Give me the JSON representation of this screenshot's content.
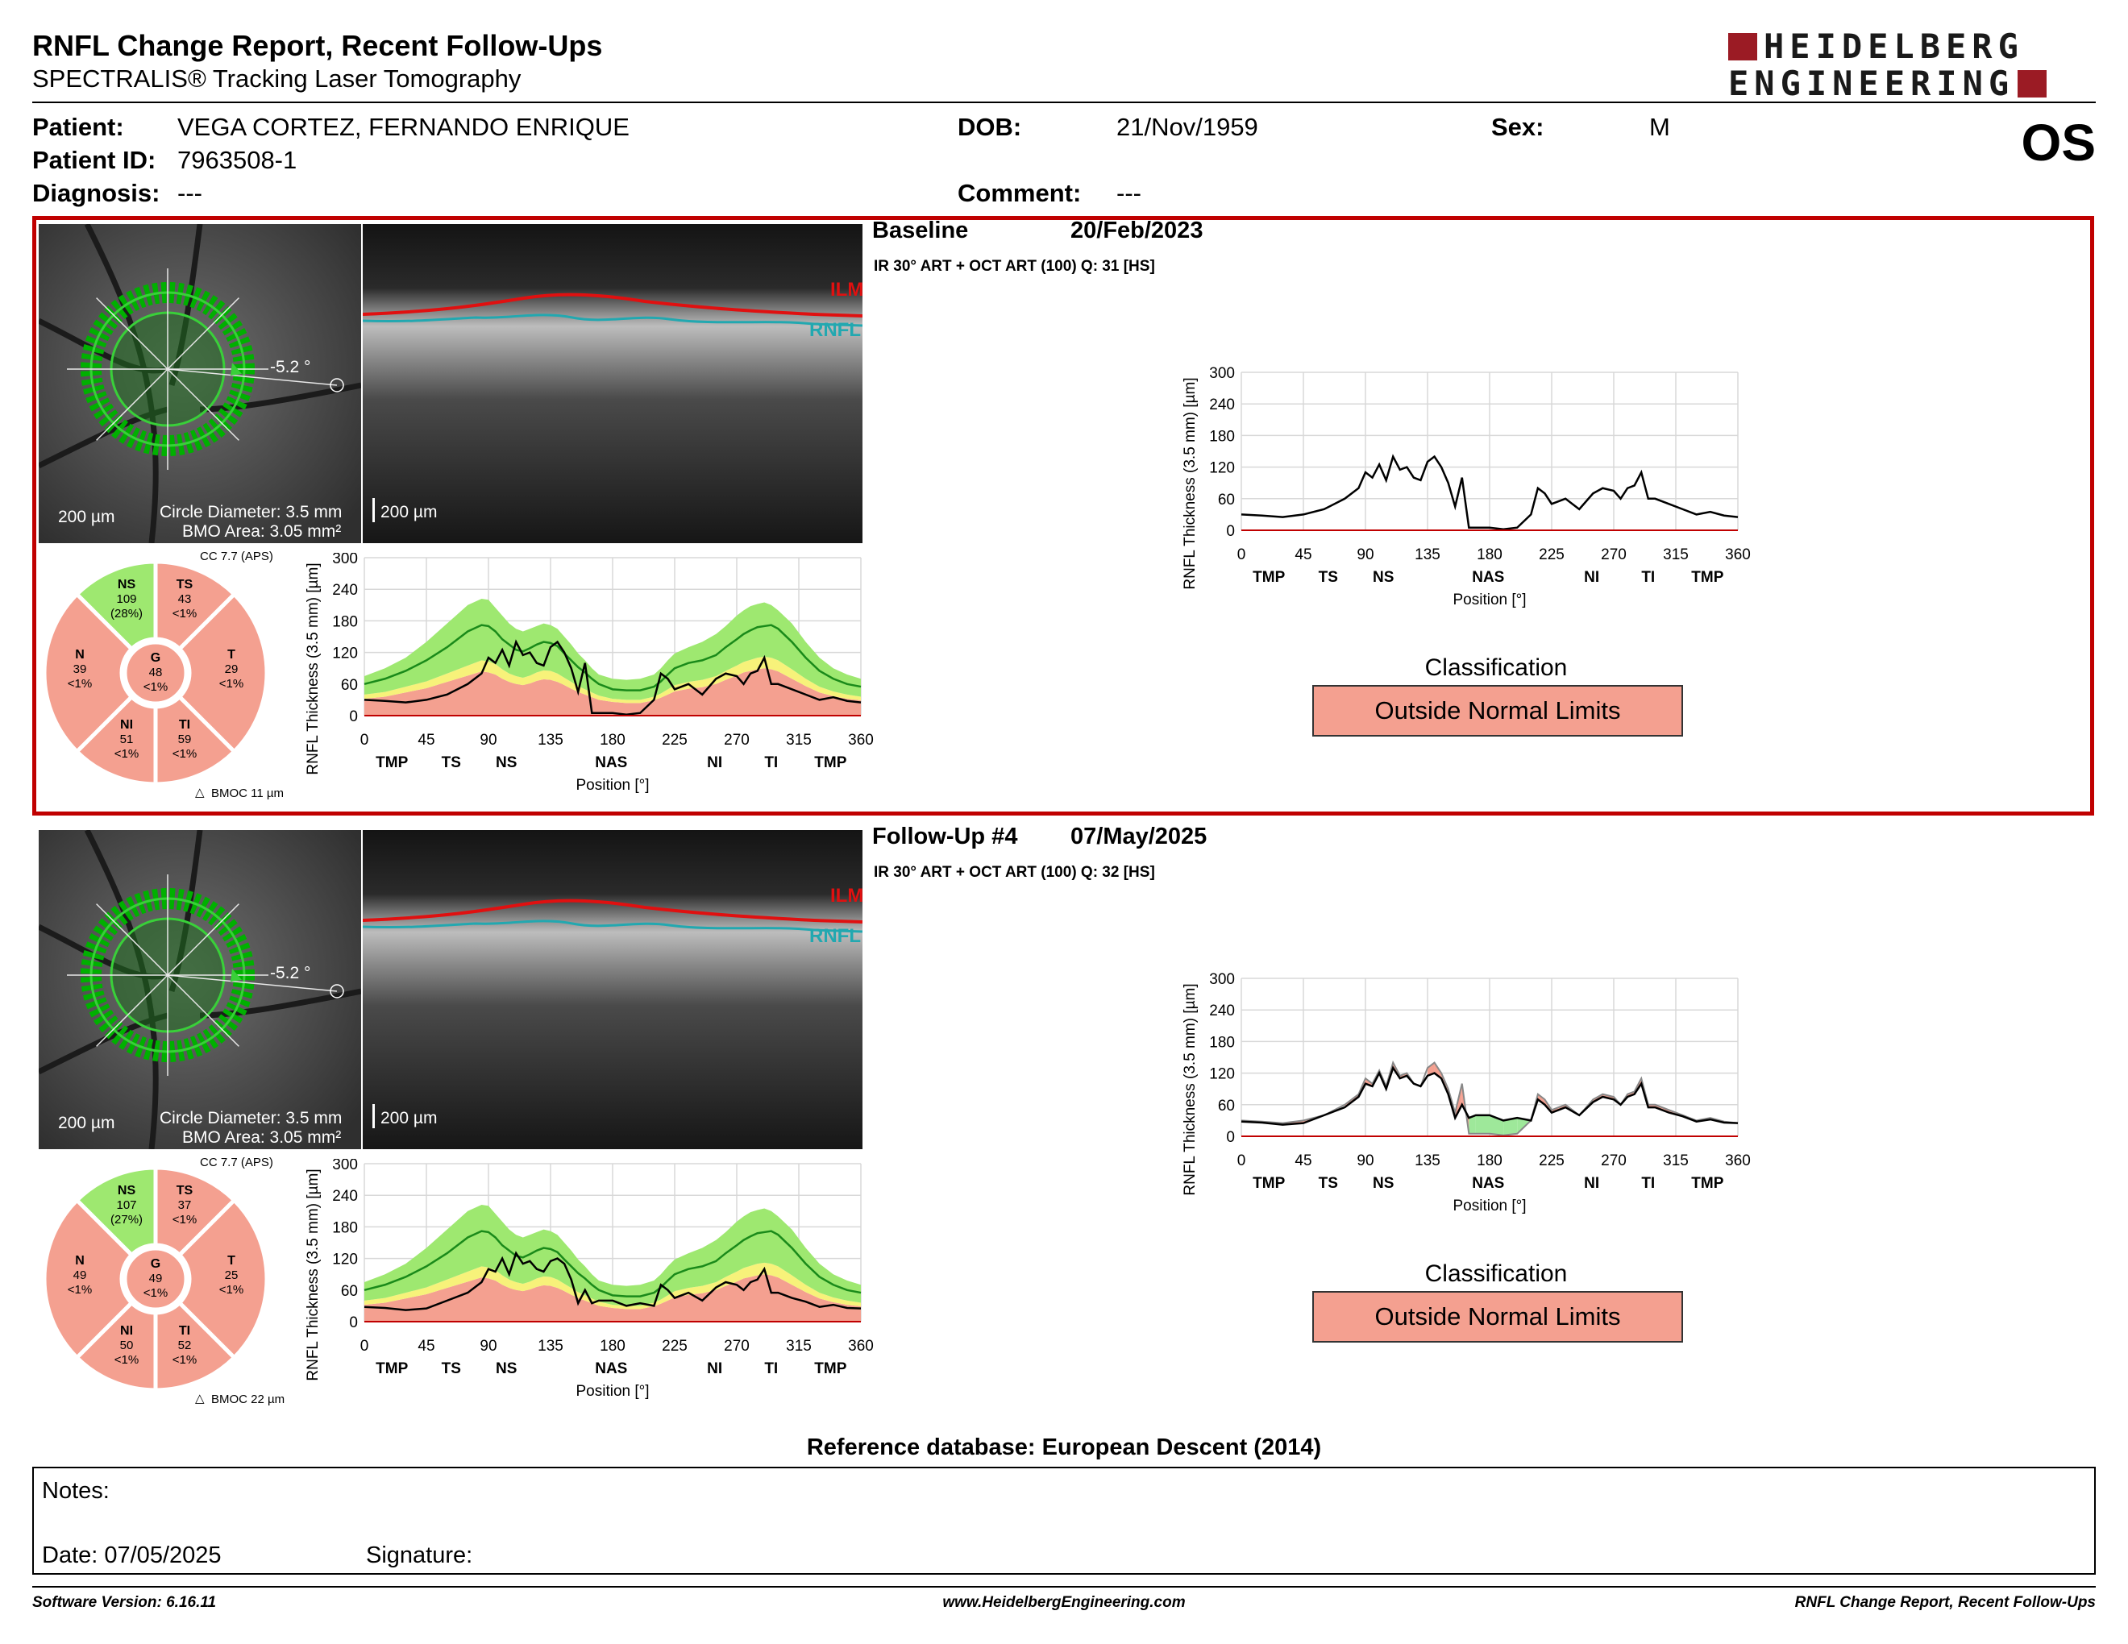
{
  "header": {
    "title": "RNFL Change Report, Recent Follow-Ups",
    "subtitle": "SPECTRALIS® Tracking Laser Tomography",
    "logo_line1": "HEIDELBERG",
    "logo_line2": "ENGINEERING",
    "eye": "OS"
  },
  "patient": {
    "patient_label": "Patient:",
    "patient_name": "VEGA CORTEZ, FERNANDO ENRIQUE",
    "id_label": "Patient ID:",
    "id_value": "7963508-1",
    "diagnosis_label": "Diagnosis:",
    "diagnosis_value": "---",
    "dob_label": "DOB:",
    "dob_value": "21/Nov/1959",
    "comment_label": "Comment:",
    "comment_value": "---",
    "sex_label": "Sex:",
    "sex_value": "M"
  },
  "colors": {
    "accent_red": "#c00000",
    "outside_limits": "#f4a090",
    "normal_green": "#9ee870",
    "borderline_yellow": "#f7f27a",
    "ilm_red": "#e01010",
    "rnfl_cyan": "#22a8b0"
  },
  "exams": [
    {
      "title": "Baseline",
      "date": "20/Feb/2023",
      "scan_info": "IR 30° ART + OCT ART (100) Q: 31 [HS]",
      "angle": "-5.2 °",
      "fundus_scale": "200 µm",
      "oct_scale": "200 µm",
      "circle_diameter": "Circle Diameter: 3.5 mm",
      "bmo_area": "BMO Area: 3.05 mm²",
      "cc": "CC 7.7 (APS)",
      "bmoc": "BMOC 11 µm",
      "ilm": "ILM",
      "rnfl": "RNFL",
      "sectors": {
        "NS": {
          "label": "NS",
          "value": "109",
          "pct": "(28%)"
        },
        "TS": {
          "label": "TS",
          "value": "43",
          "pct": "<1%"
        },
        "T": {
          "label": "T",
          "value": "29",
          "pct": "<1%"
        },
        "TI": {
          "label": "TI",
          "value": "59",
          "pct": "<1%"
        },
        "NI": {
          "label": "NI",
          "value": "51",
          "pct": "<1%"
        },
        "N": {
          "label": "N",
          "value": "39",
          "pct": "<1%"
        },
        "G": {
          "label": "G",
          "value": "48",
          "pct": "<1%"
        }
      },
      "classification_title": "Classification",
      "classification": "Outside Normal Limits"
    },
    {
      "title": "Follow-Up #4",
      "date": "07/May/2025",
      "scan_info": "IR 30° ART + OCT ART (100) Q: 32 [HS]",
      "angle": "-5.2 °",
      "fundus_scale": "200 µm",
      "oct_scale": "200 µm",
      "circle_diameter": "Circle Diameter: 3.5 mm",
      "bmo_area": "BMO Area: 3.05 mm²",
      "cc": "CC 7.7 (APS)",
      "bmoc": "BMOC 22 µm",
      "ilm": "ILM",
      "rnfl": "RNFL",
      "sectors": {
        "NS": {
          "label": "NS",
          "value": "107",
          "pct": "(27%)"
        },
        "TS": {
          "label": "TS",
          "value": "37",
          "pct": "<1%"
        },
        "T": {
          "label": "T",
          "value": "25",
          "pct": "<1%"
        },
        "TI": {
          "label": "TI",
          "value": "52",
          "pct": "<1%"
        },
        "NI": {
          "label": "NI",
          "value": "50",
          "pct": "<1%"
        },
        "N": {
          "label": "N",
          "value": "49",
          "pct": "<1%"
        },
        "G": {
          "label": "G",
          "value": "49",
          "pct": "<1%"
        }
      },
      "classification_title": "Classification",
      "classification": "Outside Normal Limits"
    }
  ],
  "chart_data": [
    {
      "type": "line",
      "name": "Baseline RNFL thickness with normative bands",
      "ylabel": "RNFL Thickness (3.5 mm) [µm]",
      "xlabel": "Position [°]",
      "xlim": [
        0,
        360
      ],
      "ylim": [
        0,
        300
      ],
      "xticks": [
        0,
        45,
        90,
        135,
        180,
        225,
        270,
        315,
        360
      ],
      "yticks": [
        0,
        60,
        120,
        180,
        240,
        300
      ],
      "sector_labels": [
        "TMP",
        "TS",
        "NS",
        "NAS",
        "NI",
        "TI",
        "TMP"
      ],
      "sector_label_x": [
        20,
        63,
        103,
        179,
        254,
        295,
        338
      ],
      "x": [
        0,
        15,
        30,
        45,
        60,
        75,
        85,
        90,
        95,
        100,
        105,
        110,
        115,
        120,
        125,
        130,
        135,
        140,
        145,
        150,
        155,
        160,
        165,
        170,
        180,
        190,
        200,
        210,
        215,
        220,
        225,
        235,
        245,
        255,
        262,
        270,
        275,
        280,
        285,
        290,
        295,
        300,
        310,
        320,
        330,
        340,
        350,
        360
      ],
      "normal_mean": [
        60,
        70,
        85,
        105,
        130,
        160,
        172,
        170,
        160,
        145,
        135,
        125,
        122,
        128,
        135,
        140,
        138,
        132,
        118,
        105,
        92,
        82,
        70,
        60,
        50,
        48,
        48,
        55,
        65,
        78,
        90,
        100,
        105,
        115,
        130,
        145,
        155,
        162,
        168,
        170,
        172,
        165,
        140,
        110,
        85,
        70,
        60,
        55
      ],
      "normal_upper": [
        75,
        90,
        110,
        140,
        175,
        210,
        222,
        220,
        205,
        190,
        175,
        165,
        160,
        165,
        170,
        175,
        172,
        165,
        150,
        135,
        118,
        105,
        90,
        78,
        70,
        68,
        70,
        78,
        90,
        105,
        118,
        130,
        140,
        155,
        170,
        190,
        200,
        208,
        212,
        215,
        210,
        200,
        175,
        140,
        110,
        90,
        78,
        70
      ],
      "borderline_lower": [
        40,
        45,
        55,
        65,
        80,
        95,
        105,
        103,
        98,
        88,
        80,
        75,
        72,
        76,
        82,
        86,
        85,
        80,
        72,
        64,
        56,
        50,
        44,
        38,
        32,
        30,
        30,
        36,
        42,
        50,
        58,
        64,
        68,
        75,
        85,
        95,
        102,
        106,
        110,
        112,
        110,
        105,
        88,
        70,
        55,
        46,
        40,
        36
      ],
      "outside_lower": [
        32,
        36,
        44,
        52,
        64,
        76,
        84,
        82,
        78,
        70,
        64,
        60,
        58,
        61,
        66,
        69,
        68,
        64,
        58,
        51,
        45,
        40,
        35,
        30,
        26,
        24,
        24,
        29,
        34,
        40,
        46,
        51,
        54,
        60,
        68,
        76,
        82,
        85,
        88,
        90,
        88,
        84,
        70,
        56,
        44,
        37,
        32,
        29
      ],
      "measurement": [
        30,
        28,
        25,
        30,
        40,
        60,
        80,
        110,
        100,
        125,
        95,
        140,
        115,
        120,
        100,
        95,
        130,
        140,
        120,
        90,
        45,
        100,
        5,
        5,
        5,
        2,
        5,
        30,
        80,
        70,
        50,
        60,
        40,
        70,
        80,
        75,
        60,
        80,
        85,
        110,
        60,
        60,
        50,
        40,
        30,
        35,
        28,
        25
      ]
    },
    {
      "type": "line",
      "name": "Baseline RNFL thickness change plot",
      "ylabel": "RNFL Thickness (3.5 mm) [µm]",
      "xlabel": "Position [°]",
      "xlim": [
        0,
        360
      ],
      "ylim": [
        0,
        300
      ],
      "xticks": [
        0,
        45,
        90,
        135,
        180,
        225,
        270,
        315,
        360
      ],
      "yticks": [
        0,
        60,
        120,
        180,
        240,
        300
      ],
      "sector_labels": [
        "TMP",
        "TS",
        "NS",
        "NAS",
        "NI",
        "TI",
        "TMP"
      ],
      "sector_label_x": [
        20,
        63,
        103,
        179,
        254,
        295,
        338
      ],
      "x": [
        0,
        15,
        30,
        45,
        60,
        75,
        85,
        90,
        95,
        100,
        105,
        110,
        115,
        120,
        125,
        130,
        135,
        140,
        145,
        150,
        155,
        160,
        165,
        170,
        180,
        190,
        200,
        210,
        215,
        220,
        225,
        235,
        245,
        255,
        262,
        270,
        275,
        280,
        285,
        290,
        295,
        300,
        310,
        320,
        330,
        340,
        350,
        360
      ],
      "measurement": [
        30,
        28,
        25,
        30,
        40,
        60,
        80,
        110,
        100,
        125,
        95,
        140,
        115,
        120,
        100,
        95,
        130,
        140,
        120,
        90,
        45,
        100,
        5,
        5,
        5,
        2,
        5,
        30,
        80,
        70,
        50,
        60,
        40,
        70,
        80,
        75,
        60,
        80,
        85,
        110,
        60,
        60,
        50,
        40,
        30,
        35,
        28,
        25
      ]
    },
    {
      "type": "line",
      "name": "Follow-Up #4 RNFL thickness with normative bands",
      "ylabel": "RNFL Thickness (3.5 mm) [µm]",
      "xlabel": "Position [°]",
      "xlim": [
        0,
        360
      ],
      "ylim": [
        0,
        300
      ],
      "xticks": [
        0,
        45,
        90,
        135,
        180,
        225,
        270,
        315,
        360
      ],
      "yticks": [
        0,
        60,
        120,
        180,
        240,
        300
      ],
      "sector_labels": [
        "TMP",
        "TS",
        "NS",
        "NAS",
        "NI",
        "TI",
        "TMP"
      ],
      "sector_label_x": [
        20,
        63,
        103,
        179,
        254,
        295,
        338
      ],
      "x": [
        0,
        15,
        30,
        45,
        60,
        75,
        85,
        90,
        95,
        100,
        105,
        110,
        115,
        120,
        125,
        130,
        135,
        140,
        145,
        150,
        155,
        160,
        165,
        170,
        180,
        190,
        200,
        210,
        215,
        220,
        225,
        235,
        245,
        255,
        262,
        270,
        275,
        280,
        285,
        290,
        295,
        300,
        310,
        320,
        330,
        340,
        350,
        360
      ],
      "normal_mean": [
        60,
        70,
        85,
        105,
        130,
        160,
        172,
        170,
        160,
        145,
        135,
        125,
        122,
        128,
        135,
        140,
        138,
        132,
        118,
        105,
        92,
        82,
        70,
        60,
        50,
        48,
        48,
        55,
        65,
        78,
        90,
        100,
        105,
        115,
        130,
        145,
        155,
        162,
        168,
        170,
        172,
        165,
        140,
        110,
        85,
        70,
        60,
        55
      ],
      "normal_upper": [
        75,
        90,
        110,
        140,
        175,
        210,
        222,
        220,
        205,
        190,
        175,
        165,
        160,
        165,
        170,
        175,
        172,
        165,
        150,
        135,
        118,
        105,
        90,
        78,
        70,
        68,
        70,
        78,
        90,
        105,
        118,
        130,
        140,
        155,
        170,
        190,
        200,
        208,
        212,
        215,
        210,
        200,
        175,
        140,
        110,
        90,
        78,
        70
      ],
      "borderline_lower": [
        40,
        45,
        55,
        65,
        80,
        95,
        105,
        103,
        98,
        88,
        80,
        75,
        72,
        76,
        82,
        86,
        85,
        80,
        72,
        64,
        56,
        50,
        44,
        38,
        32,
        30,
        30,
        36,
        42,
        50,
        58,
        64,
        68,
        75,
        85,
        95,
        102,
        106,
        110,
        112,
        110,
        105,
        88,
        70,
        55,
        46,
        40,
        36
      ],
      "outside_lower": [
        32,
        36,
        44,
        52,
        64,
        76,
        84,
        82,
        78,
        70,
        64,
        60,
        58,
        61,
        66,
        69,
        68,
        64,
        58,
        51,
        45,
        40,
        35,
        30,
        26,
        24,
        24,
        29,
        34,
        40,
        46,
        51,
        54,
        60,
        68,
        76,
        82,
        85,
        88,
        90,
        88,
        84,
        70,
        56,
        44,
        37,
        32,
        29
      ],
      "measurement": [
        28,
        26,
        22,
        25,
        40,
        55,
        75,
        100,
        95,
        120,
        90,
        130,
        110,
        115,
        100,
        95,
        115,
        120,
        110,
        80,
        35,
        60,
        35,
        40,
        40,
        30,
        35,
        30,
        70,
        60,
        45,
        55,
        40,
        65,
        75,
        70,
        60,
        75,
        80,
        100,
        55,
        55,
        45,
        38,
        28,
        32,
        26,
        25
      ]
    },
    {
      "type": "line",
      "name": "Follow-Up #4 RNFL thickness change plot",
      "ylabel": "RNFL Thickness (3.5 mm) [µm]",
      "xlabel": "Position [°]",
      "xlim": [
        0,
        360
      ],
      "ylim": [
        0,
        300
      ],
      "xticks": [
        0,
        45,
        90,
        135,
        180,
        225,
        270,
        315,
        360
      ],
      "yticks": [
        0,
        60,
        120,
        180,
        240,
        300
      ],
      "sector_labels": [
        "TMP",
        "TS",
        "NS",
        "NAS",
        "NI",
        "TI",
        "TMP"
      ],
      "sector_label_x": [
        20,
        63,
        103,
        179,
        254,
        295,
        338
      ],
      "x": [
        0,
        15,
        30,
        45,
        60,
        75,
        85,
        90,
        95,
        100,
        105,
        110,
        115,
        120,
        125,
        130,
        135,
        140,
        145,
        150,
        155,
        160,
        165,
        170,
        180,
        190,
        200,
        210,
        215,
        220,
        225,
        235,
        245,
        255,
        262,
        270,
        275,
        280,
        285,
        290,
        295,
        300,
        310,
        320,
        330,
        340,
        350,
        360
      ],
      "measurement": [
        28,
        26,
        22,
        25,
        40,
        55,
        75,
        100,
        95,
        120,
        90,
        130,
        110,
        115,
        100,
        95,
        115,
        120,
        110,
        80,
        35,
        60,
        35,
        40,
        40,
        30,
        35,
        30,
        70,
        60,
        45,
        55,
        40,
        65,
        75,
        70,
        60,
        75,
        80,
        100,
        55,
        55,
        45,
        38,
        28,
        32,
        26,
        25
      ]
    }
  ],
  "footer": {
    "reference_db": "Reference database: European Descent (2014)",
    "notes_label": "Notes:",
    "date_label": "Date: 07/05/2025",
    "signature_label": "Signature:",
    "software": "Software Version: 6.16.11",
    "website": "www.HeidelbergEngineering.com",
    "report_name": "RNFL Change Report, Recent Follow-Ups"
  }
}
